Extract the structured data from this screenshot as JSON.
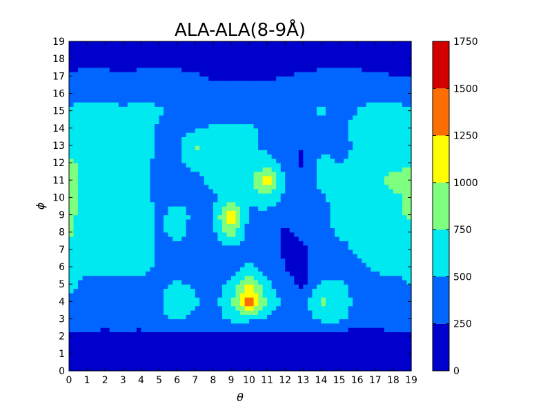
{
  "chart_data": {
    "type": "heatmap",
    "style": "filled-contour",
    "title": "ALA-ALA(8-9Å)",
    "xlabel": "θ",
    "ylabel": "ϕ",
    "xlim": [
      0,
      19
    ],
    "ylim": [
      0,
      19
    ],
    "x_ticks": [
      "0",
      "1",
      "2",
      "3",
      "4",
      "5",
      "6",
      "7",
      "8",
      "9",
      "10",
      "11",
      "12",
      "13",
      "14",
      "15",
      "16",
      "17",
      "18",
      "19"
    ],
    "y_ticks": [
      "0",
      "1",
      "2",
      "3",
      "4",
      "5",
      "6",
      "7",
      "8",
      "9",
      "10",
      "11",
      "12",
      "13",
      "14",
      "15",
      "16",
      "17",
      "18",
      "19"
    ],
    "colorbar": {
      "ticks": [
        "0",
        "250",
        "500",
        "750",
        "1000",
        "1250",
        "1500",
        "1750"
      ],
      "levels": [
        0,
        250,
        500,
        750,
        1000,
        1250,
        1500,
        1750
      ],
      "colors": [
        "#0000cd",
        "#0066ff",
        "#00e8f0",
        "#7fff7f",
        "#ffff00",
        "#ff6e00",
        "#d40000"
      ]
    },
    "rows_y0_to_y19": [
      [
        100,
        100,
        100,
        100,
        100,
        100,
        100,
        100,
        100,
        100,
        100,
        100,
        100,
        100,
        100,
        100,
        100,
        100,
        100,
        100
      ],
      [
        100,
        100,
        100,
        100,
        100,
        100,
        100,
        100,
        100,
        100,
        100,
        100,
        100,
        100,
        100,
        100,
        100,
        100,
        100,
        100
      ],
      [
        200,
        200,
        150,
        200,
        150,
        200,
        200,
        200,
        200,
        200,
        200,
        200,
        200,
        200,
        150,
        150,
        100,
        100,
        200,
        200
      ],
      [
        400,
        400,
        400,
        400,
        400,
        450,
        550,
        400,
        400,
        550,
        550,
        450,
        400,
        400,
        550,
        550,
        400,
        400,
        400,
        400
      ],
      [
        450,
        400,
        400,
        400,
        400,
        450,
        800,
        550,
        400,
        700,
        1500,
        700,
        450,
        400,
        800,
        700,
        400,
        400,
        400,
        400
      ],
      [
        600,
        400,
        400,
        400,
        400,
        400,
        550,
        450,
        400,
        550,
        1000,
        550,
        300,
        200,
        550,
        550,
        400,
        400,
        450,
        500
      ],
      [
        600,
        600,
        600,
        600,
        600,
        450,
        400,
        400,
        400,
        400,
        550,
        400,
        250,
        200,
        400,
        400,
        450,
        550,
        550,
        550
      ],
      [
        650,
        650,
        650,
        650,
        650,
        450,
        400,
        400,
        400,
        400,
        400,
        400,
        200,
        200,
        400,
        400,
        550,
        600,
        600,
        600
      ],
      [
        800,
        650,
        650,
        650,
        650,
        450,
        600,
        400,
        450,
        900,
        400,
        400,
        200,
        300,
        400,
        550,
        600,
        650,
        650,
        650
      ],
      [
        800,
        650,
        650,
        650,
        650,
        450,
        600,
        450,
        500,
        1250,
        450,
        400,
        350,
        450,
        400,
        600,
        650,
        650,
        700,
        800
      ],
      [
        900,
        650,
        650,
        650,
        650,
        400,
        450,
        400,
        450,
        600,
        550,
        700,
        450,
        450,
        450,
        600,
        650,
        650,
        700,
        800
      ],
      [
        900,
        650,
        650,
        650,
        650,
        400,
        400,
        400,
        600,
        500,
        650,
        1250,
        450,
        300,
        600,
        500,
        600,
        650,
        850,
        800
      ],
      [
        800,
        650,
        650,
        650,
        650,
        400,
        450,
        600,
        600,
        550,
        550,
        600,
        400,
        200,
        600,
        500,
        550,
        650,
        650,
        750
      ],
      [
        650,
        650,
        650,
        650,
        650,
        450,
        400,
        800,
        600,
        550,
        550,
        450,
        300,
        250,
        400,
        400,
        550,
        650,
        650,
        650
      ],
      [
        600,
        650,
        650,
        650,
        650,
        450,
        400,
        450,
        550,
        550,
        550,
        450,
        400,
        400,
        450,
        400,
        600,
        650,
        650,
        600
      ],
      [
        500,
        650,
        600,
        550,
        600,
        550,
        400,
        400,
        400,
        400,
        400,
        400,
        400,
        400,
        550,
        400,
        500,
        650,
        650,
        500
      ],
      [
        450,
        400,
        400,
        400,
        400,
        400,
        400,
        400,
        400,
        400,
        400,
        400,
        400,
        400,
        400,
        400,
        400,
        400,
        400,
        400
      ],
      [
        250,
        350,
        350,
        300,
        350,
        350,
        350,
        300,
        200,
        200,
        200,
        200,
        250,
        300,
        350,
        350,
        350,
        300,
        250,
        250
      ],
      [
        200,
        150,
        100,
        100,
        100,
        100,
        100,
        100,
        100,
        100,
        100,
        100,
        100,
        100,
        100,
        100,
        100,
        100,
        150,
        200
      ],
      [
        100,
        100,
        100,
        100,
        100,
        100,
        100,
        100,
        100,
        100,
        100,
        100,
        100,
        100,
        100,
        100,
        100,
        100,
        100,
        100
      ]
    ]
  }
}
